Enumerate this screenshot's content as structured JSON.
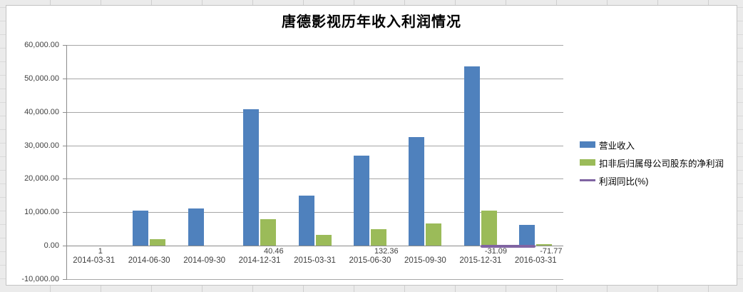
{
  "title": "唐德影视历年收入利润情况",
  "chart_data": {
    "type": "bar",
    "subtype": "bar+line combo, clustered",
    "categories": [
      "2014-03-31",
      "2014-06-30",
      "2014-09-30",
      "2014-12-31",
      "2015-03-31",
      "2015-06-30",
      "2015-09-30",
      "2015-12-31",
      "2016-03-31"
    ],
    "series": [
      {
        "name": "营业收入",
        "type": "bar",
        "color": "#4F81BD",
        "values": [
          null,
          10400,
          11100,
          40800,
          15000,
          26900,
          32400,
          53600,
          6100
        ]
      },
      {
        "name": "扣非后归属母公司股东的净利润",
        "type": "bar",
        "color": "#9BBB59",
        "values": [
          null,
          2000,
          null,
          8000,
          3100,
          5000,
          6700,
          10500,
          500
        ]
      },
      {
        "name": "利润同比(%)",
        "type": "line",
        "color": "#8064A2",
        "values": [
          1,
          null,
          null,
          40.46,
          null,
          132.36,
          null,
          -31.09,
          -71.77
        ],
        "labels": [
          "1",
          null,
          null,
          "40.46",
          null,
          "132.36",
          null,
          "-31.09",
          "-71.77"
        ],
        "label_position": "below-axis"
      }
    ],
    "title": "唐德影视历年收入利润情况",
    "xlabel": "",
    "ylabel": "",
    "ylim": [
      -10000,
      60000
    ],
    "ytick_step": 10000,
    "ytick_labels": [
      "60,000.00",
      "50,000.00",
      "40,000.00",
      "30,000.00",
      "20,000.00",
      "10,000.00",
      "0.00",
      "-10,000.00"
    ],
    "grid": true,
    "legend_position": "right",
    "colors": {
      "gridline": "#A6A6A6",
      "axis": "#8C8C8C",
      "text": "#3F3F3F",
      "chart_border": "#C3C3C3",
      "plot_bg": "#FFFFFF",
      "worksheet_bg": "#EBEBEB"
    }
  }
}
